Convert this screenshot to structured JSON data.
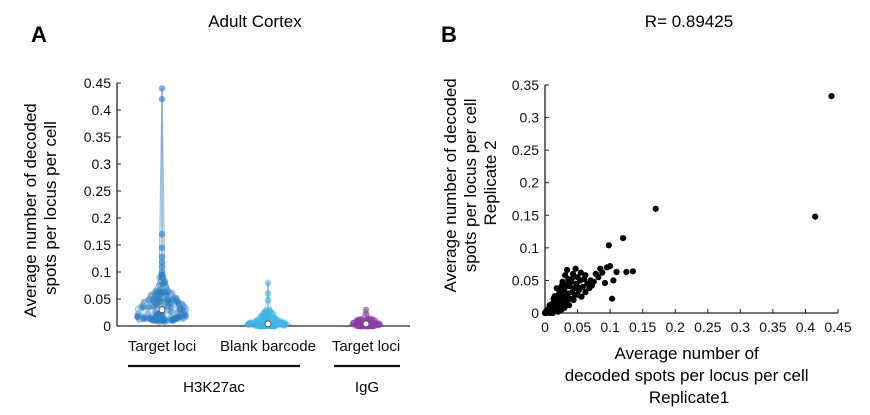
{
  "panels": {
    "a": {
      "letter": "A",
      "title": "Adult Cortex",
      "ylabel_lines": [
        "Average number of decoded",
        "spots per locus per cell"
      ],
      "group_labels": [
        "H3K27ac",
        "IgG"
      ]
    },
    "b": {
      "letter": "B",
      "title": "R= 0.89425",
      "ylabel_lines": [
        "Average number of decoded",
        "spots per locus per cell",
        "Replicate 2"
      ],
      "xlabel_lines": [
        "Average number of",
        "decoded spots per locus per cell",
        "Replicate1"
      ]
    }
  },
  "chart_data": [
    {
      "type": "violin",
      "title": "Adult Cortex",
      "ylabel": "Average number of decoded spots per locus per cell",
      "ylim": [
        0,
        0.45
      ],
      "yticks": [
        0,
        0.05,
        0.1,
        0.15,
        0.2,
        0.25,
        0.3,
        0.35,
        0.4,
        0.45
      ],
      "ytick_labels": [
        "0",
        "0.05",
        "0.1",
        "0.15",
        "0.2",
        "0.25",
        "0.3",
        "0.35",
        "0.4",
        "0.45"
      ],
      "categories": [
        "Target loci",
        "Blank barcode",
        "Target loci"
      ],
      "groups": [
        {
          "label": "H3K27ac",
          "categories": [
            0,
            1
          ]
        },
        {
          "label": "IgG",
          "categories": [
            2
          ]
        }
      ],
      "series": [
        {
          "color": "#2e7fc2",
          "median": 0.03,
          "max": 0.44,
          "outliers": [
            0.44,
            0.42,
            0.17,
            0.145,
            0.128,
            0.118,
            0.11,
            0.1,
            0.095
          ]
        },
        {
          "color": "#40b4e6",
          "median": 0.004,
          "max": 0.08,
          "outliers": [
            0.08,
            0.06,
            0.048
          ]
        },
        {
          "color": "#8b3da6",
          "median": 0.004,
          "max": 0.03,
          "outliers": [
            0.03,
            0.022
          ]
        }
      ],
      "grid": false
    },
    {
      "type": "scatter",
      "title": "R= 0.89425",
      "xlabel": "Average number of decoded spots per locus per cell Replicate1",
      "ylabel": "Average number of decoded spots per locus per cell Replicate 2",
      "xlim": [
        0,
        0.45
      ],
      "ylim": [
        0,
        0.35
      ],
      "xticks": [
        0,
        0.05,
        0.1,
        0.15,
        0.2,
        0.25,
        0.3,
        0.35,
        0.4,
        0.45
      ],
      "xtick_labels": [
        "0",
        "0.05",
        "0.1",
        "0.15",
        "0.2",
        "0.25",
        "0.3",
        "0.35",
        "0.4",
        "0.45"
      ],
      "yticks": [
        0,
        0.05,
        0.1,
        0.15,
        0.2,
        0.25,
        0.3,
        0.35
      ],
      "ytick_labels": [
        "0",
        "0.05",
        "0.1",
        "0.15",
        "0.2",
        "0.25",
        "0.3",
        "0.35"
      ],
      "color": "#000000",
      "points": [
        [
          0.44,
          0.333
        ],
        [
          0.415,
          0.148
        ],
        [
          0.17,
          0.16
        ],
        [
          0.12,
          0.115
        ],
        [
          0.098,
          0.104
        ],
        [
          0.135,
          0.064
        ],
        [
          0.103,
          0.022
        ],
        [
          0.11,
          0.063
        ],
        [
          0.125,
          0.063
        ],
        [
          0.095,
          0.07
        ],
        [
          0.085,
          0.068
        ],
        [
          0.082,
          0.055
        ],
        [
          0.078,
          0.06
        ],
        [
          0.07,
          0.05
        ],
        [
          0.065,
          0.045
        ],
        [
          0.06,
          0.052
        ],
        [
          0.058,
          0.04
        ],
        [
          0.055,
          0.062
        ],
        [
          0.052,
          0.035
        ],
        [
          0.05,
          0.055
        ],
        [
          0.048,
          0.045
        ],
        [
          0.046,
          0.028
        ],
        [
          0.045,
          0.038
        ],
        [
          0.043,
          0.06
        ],
        [
          0.042,
          0.032
        ],
        [
          0.04,
          0.048
        ],
        [
          0.039,
          0.022
        ],
        [
          0.038,
          0.041
        ],
        [
          0.036,
          0.052
        ],
        [
          0.035,
          0.03
        ],
        [
          0.034,
          0.018
        ],
        [
          0.033,
          0.044
        ],
        [
          0.032,
          0.025
        ],
        [
          0.03,
          0.038
        ],
        [
          0.029,
          0.014
        ],
        [
          0.028,
          0.032
        ],
        [
          0.027,
          0.048
        ],
        [
          0.026,
          0.022
        ],
        [
          0.025,
          0.03
        ],
        [
          0.024,
          0.012
        ],
        [
          0.023,
          0.036
        ],
        [
          0.022,
          0.02
        ],
        [
          0.021,
          0.028
        ],
        [
          0.02,
          0.008
        ],
        [
          0.019,
          0.016
        ],
        [
          0.018,
          0.024
        ],
        [
          0.017,
          0.012
        ],
        [
          0.016,
          0.004
        ],
        [
          0.015,
          0.018
        ],
        [
          0.014,
          0.01
        ],
        [
          0.013,
          0.022
        ],
        [
          0.012,
          0.006
        ],
        [
          0.011,
          0.014
        ],
        [
          0.01,
          0.003
        ],
        [
          0.009,
          0.01
        ],
        [
          0.008,
          0.005
        ],
        [
          0.007,
          0.012
        ],
        [
          0.006,
          0.002
        ],
        [
          0.005,
          0.006
        ],
        [
          0.004,
          0.001
        ],
        [
          0.003,
          0.004
        ],
        [
          0.002,
          0.0
        ],
        [
          0.001,
          0.002
        ],
        [
          0.0,
          0.0
        ],
        [
          0.012,
          0.0
        ],
        [
          0.02,
          0.002
        ],
        [
          0.008,
          0.0
        ],
        [
          0.03,
          0.008
        ],
        [
          0.025,
          0.005
        ],
        [
          0.015,
          0.026
        ],
        [
          0.037,
          0.012
        ],
        [
          0.044,
          0.02
        ],
        [
          0.05,
          0.028
        ],
        [
          0.056,
          0.025
        ],
        [
          0.062,
          0.032
        ],
        [
          0.068,
          0.038
        ],
        [
          0.072,
          0.042
        ],
        [
          0.075,
          0.048
        ],
        [
          0.05,
          0.04
        ],
        [
          0.041,
          0.052
        ],
        [
          0.031,
          0.058
        ],
        [
          0.026,
          0.042
        ],
        [
          0.022,
          0.034
        ],
        [
          0.018,
          0.038
        ],
        [
          0.034,
          0.066
        ],
        [
          0.047,
          0.068
        ],
        [
          0.054,
          0.05
        ],
        [
          0.062,
          0.058
        ],
        [
          0.088,
          0.062
        ],
        [
          0.092,
          0.046
        ],
        [
          0.1,
          0.072
        ],
        [
          0.105,
          0.05
        ]
      ],
      "grid": false
    }
  ]
}
